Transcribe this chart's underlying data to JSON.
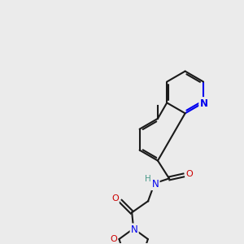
{
  "bg": "#ebebeb",
  "bc": "#1a1a1a",
  "nc": "#0000ee",
  "oc": "#cc0000",
  "figsize": [
    3.0,
    3.0
  ],
  "dpi": 100
}
